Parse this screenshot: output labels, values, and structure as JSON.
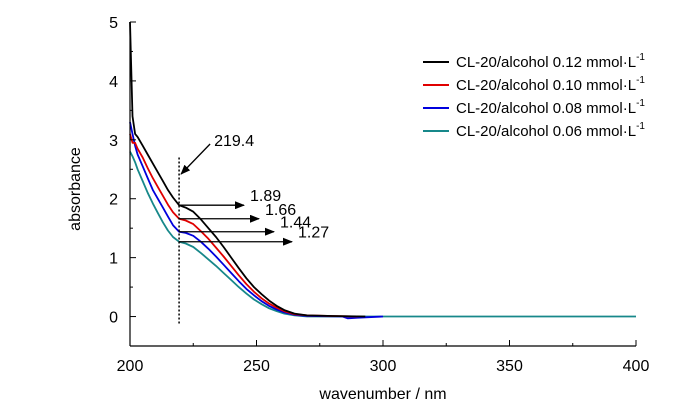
{
  "chart_data": {
    "type": "line",
    "xlabel": "wavenumber / nm",
    "ylabel": "absorbance",
    "xlim": [
      200,
      400
    ],
    "ylim": [
      -0.5,
      5
    ],
    "x_ticks": [
      200,
      250,
      300,
      350,
      400
    ],
    "y_ticks": [
      0,
      1,
      2,
      3,
      4,
      5
    ],
    "grid": false,
    "legend_position": "top-right",
    "series": [
      {
        "name": "CL-20/alcohol  0.12 mmol·L",
        "sup": "-1",
        "color": "#000000",
        "points": [
          [
            200,
            5.0
          ],
          [
            201,
            3.4
          ],
          [
            202,
            3.1
          ],
          [
            203,
            3.05
          ],
          [
            205,
            2.9
          ],
          [
            207,
            2.75
          ],
          [
            209,
            2.6
          ],
          [
            211,
            2.45
          ],
          [
            213,
            2.3
          ],
          [
            215,
            2.15
          ],
          [
            217,
            2.02
          ],
          [
            219.4,
            1.89
          ],
          [
            222,
            1.85
          ],
          [
            225,
            1.78
          ],
          [
            228,
            1.65
          ],
          [
            231,
            1.5
          ],
          [
            234,
            1.35
          ],
          [
            237,
            1.18
          ],
          [
            240,
            1.0
          ],
          [
            243,
            0.82
          ],
          [
            246,
            0.65
          ],
          [
            249,
            0.5
          ],
          [
            252,
            0.38
          ],
          [
            255,
            0.27
          ],
          [
            258,
            0.18
          ],
          [
            261,
            0.11
          ],
          [
            265,
            0.05
          ],
          [
            270,
            0.02
          ],
          [
            280,
            0.01
          ],
          [
            293,
            0.0
          ]
        ]
      },
      {
        "name": "CL-20/alcohol  0.10 mmol·L",
        "sup": "-1",
        "color": "#e00000",
        "points": [
          [
            200,
            3.1
          ],
          [
            201,
            2.95
          ],
          [
            202,
            2.95
          ],
          [
            203,
            2.85
          ],
          [
            205,
            2.7
          ],
          [
            207,
            2.52
          ],
          [
            209,
            2.35
          ],
          [
            211,
            2.2
          ],
          [
            213,
            2.05
          ],
          [
            215,
            1.9
          ],
          [
            217,
            1.77
          ],
          [
            219.4,
            1.66
          ],
          [
            222,
            1.63
          ],
          [
            225,
            1.57
          ],
          [
            228,
            1.45
          ],
          [
            231,
            1.32
          ],
          [
            234,
            1.17
          ],
          [
            237,
            1.02
          ],
          [
            240,
            0.86
          ],
          [
            243,
            0.7
          ],
          [
            246,
            0.55
          ],
          [
            249,
            0.42
          ],
          [
            252,
            0.31
          ],
          [
            255,
            0.22
          ],
          [
            258,
            0.15
          ],
          [
            261,
            0.09
          ],
          [
            265,
            0.04
          ],
          [
            270,
            0.02
          ],
          [
            280,
            0.01
          ],
          [
            290,
            0.0
          ]
        ]
      },
      {
        "name": "CL-20/alcohol  0.08 mmol·L",
        "sup": "-1",
        "color": "#0000dd",
        "points": [
          [
            200,
            3.3
          ],
          [
            201,
            3.1
          ],
          [
            202,
            2.9
          ],
          [
            203,
            2.75
          ],
          [
            205,
            2.55
          ],
          [
            207,
            2.35
          ],
          [
            209,
            2.15
          ],
          [
            211,
            2.0
          ],
          [
            213,
            1.85
          ],
          [
            215,
            1.7
          ],
          [
            217,
            1.55
          ],
          [
            219.4,
            1.44
          ],
          [
            222,
            1.42
          ],
          [
            225,
            1.37
          ],
          [
            228,
            1.27
          ],
          [
            231,
            1.15
          ],
          [
            234,
            1.02
          ],
          [
            237,
            0.88
          ],
          [
            240,
            0.74
          ],
          [
            243,
            0.6
          ],
          [
            246,
            0.47
          ],
          [
            249,
            0.36
          ],
          [
            252,
            0.26
          ],
          [
            255,
            0.18
          ],
          [
            258,
            0.12
          ],
          [
            261,
            0.07
          ],
          [
            265,
            0.03
          ],
          [
            270,
            0.01
          ],
          [
            284,
            0.0
          ],
          [
            286,
            -0.03
          ],
          [
            290,
            -0.02
          ],
          [
            300,
            0.0
          ]
        ]
      },
      {
        "name": "CL-20/alcohol  0.06 mmol·L",
        "sup": "-1",
        "color": "#17888a",
        "points": [
          [
            200,
            2.8
          ],
          [
            201,
            2.72
          ],
          [
            202,
            2.62
          ],
          [
            203,
            2.5
          ],
          [
            205,
            2.3
          ],
          [
            207,
            2.1
          ],
          [
            209,
            1.92
          ],
          [
            211,
            1.76
          ],
          [
            213,
            1.6
          ],
          [
            215,
            1.46
          ],
          [
            217,
            1.35
          ],
          [
            219.4,
            1.27
          ],
          [
            222,
            1.24
          ],
          [
            225,
            1.18
          ],
          [
            228,
            1.08
          ],
          [
            231,
            0.97
          ],
          [
            234,
            0.86
          ],
          [
            237,
            0.74
          ],
          [
            240,
            0.62
          ],
          [
            243,
            0.5
          ],
          [
            246,
            0.39
          ],
          [
            249,
            0.29
          ],
          [
            252,
            0.21
          ],
          [
            255,
            0.14
          ],
          [
            258,
            0.09
          ],
          [
            261,
            0.05
          ],
          [
            265,
            0.02
          ],
          [
            270,
            0.0
          ],
          [
            400,
            0.0
          ]
        ]
      }
    ],
    "annotations": {
      "marker_wavelength": 219.4,
      "marker_label": "219.4",
      "value_labels": [
        "1.89",
        "1.66",
        "1.44",
        "1.27"
      ],
      "values": [
        1.89,
        1.66,
        1.44,
        1.27
      ]
    }
  }
}
